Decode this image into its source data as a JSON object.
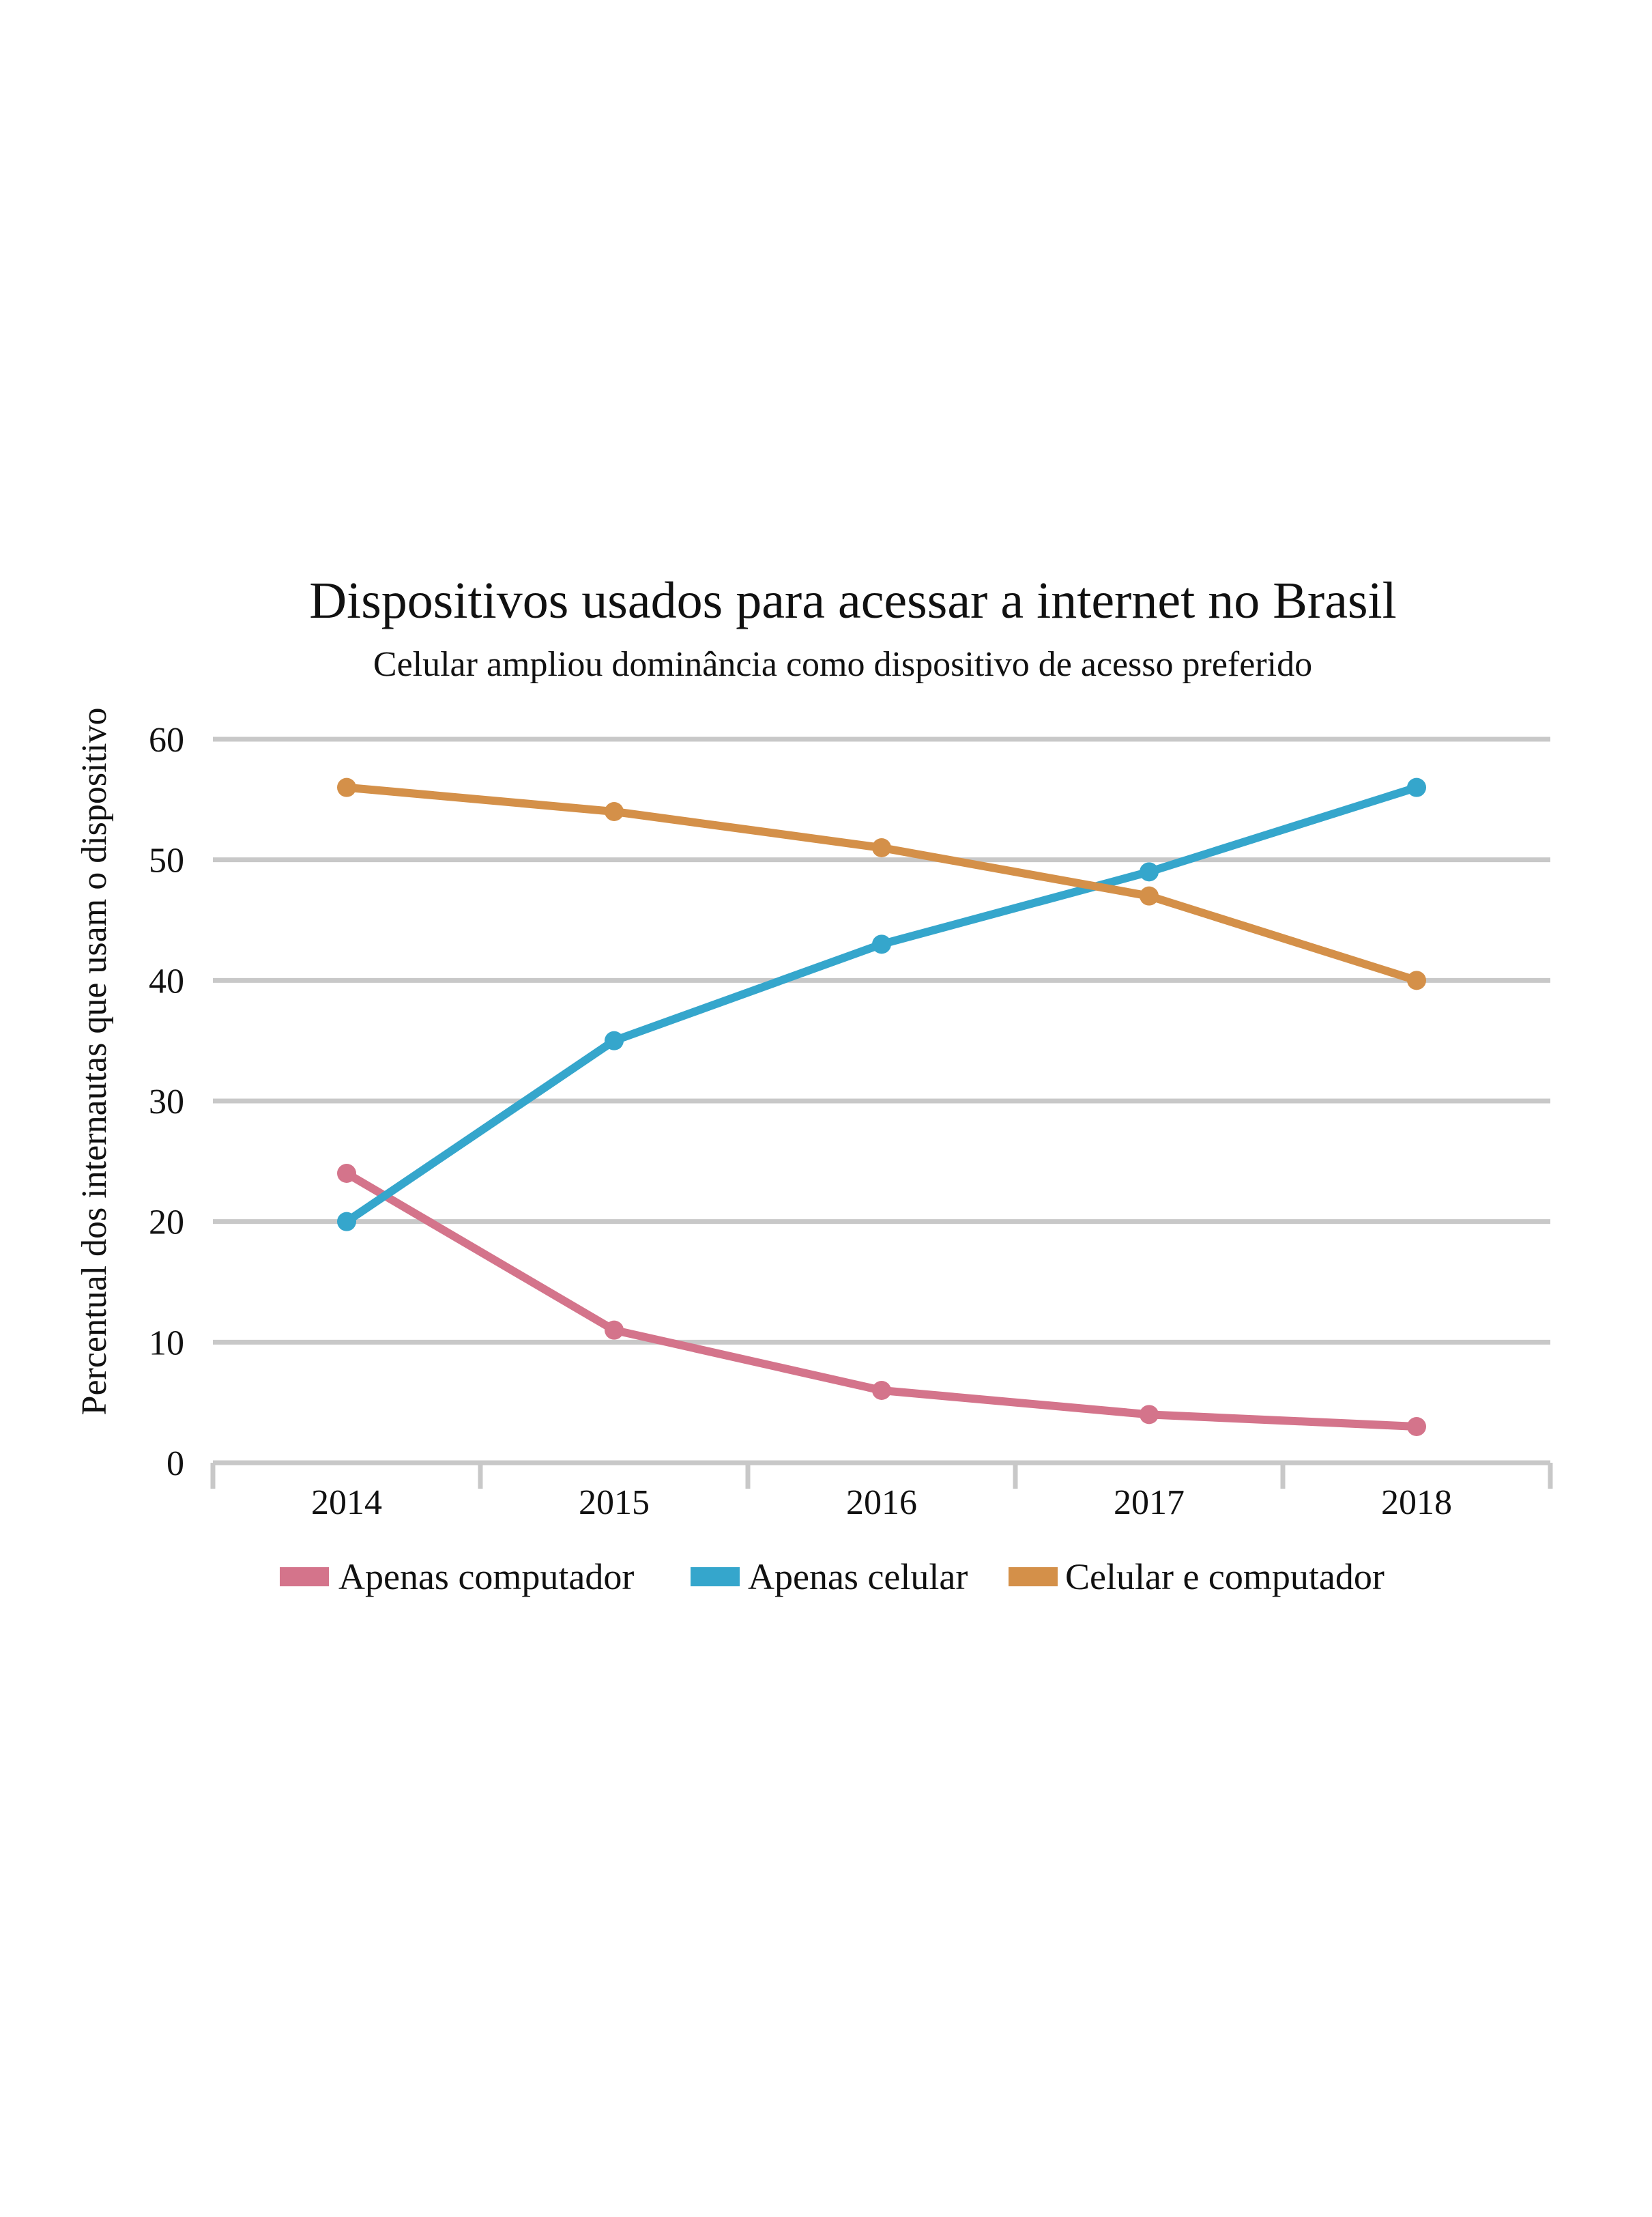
{
  "chart_data": {
    "type": "line",
    "title": "Dispositivos usados para acessar a internet no Brasil",
    "subtitle": "Celular ampliou dominância como dispositivo de acesso preferido",
    "ylabel": "Percentual dos internautas que usam o dispositivo",
    "xlabel": "",
    "categories": [
      "2014",
      "2015",
      "2016",
      "2017",
      "2018"
    ],
    "ylim": [
      0,
      60
    ],
    "yticks": [
      "0",
      "10",
      "20",
      "30",
      "40",
      "50",
      "60"
    ],
    "grid": true,
    "legend_position": "bottom",
    "series": [
      {
        "name": "Apenas computador",
        "color": "#d4748b",
        "values": [
          24,
          11,
          6,
          4,
          3
        ]
      },
      {
        "name": "Apenas celular",
        "color": "#35a6cc",
        "values": [
          20,
          35,
          43,
          49,
          56
        ]
      },
      {
        "name": "Celular e computador",
        "color": "#d49049",
        "values": [
          56,
          54,
          51,
          47,
          40
        ]
      }
    ]
  }
}
